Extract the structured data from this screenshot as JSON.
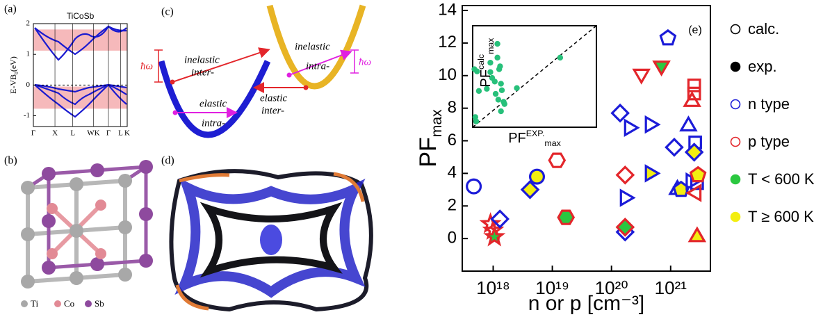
{
  "panels": {
    "a": "(a)",
    "b": "(b)",
    "c": "(c)",
    "d": "(d)"
  },
  "crystal_legend": [
    "Ti",
    "Co",
    "Sb"
  ],
  "scattering": {
    "inelastic_inter": [
      "inelastic",
      "inter-"
    ],
    "elastic_intra": [
      "elastic",
      "intra-"
    ],
    "elastic_inter": [
      "elastic",
      "inter-"
    ],
    "inelastic_intra": [
      "inelastic",
      "intra-"
    ],
    "phonon_left": "ħω",
    "phonon_right": "ħω"
  },
  "chart_data": [
    {
      "type": "scatter",
      "panel_label": "(e)",
      "y_label": {
        "text": "PF",
        "sub": "max"
      },
      "x_label": "n or p [cm⁻³]",
      "log_x": true,
      "xlim": [
        3e+17,
        4.7e+21
      ],
      "xticks": [
        {
          "value": 1e+18,
          "label": "10¹⁸"
        },
        {
          "value": 1e+19,
          "label": "10¹⁹"
        },
        {
          "value": 1e+20,
          "label": "10²⁰"
        },
        {
          "value": 1e+21,
          "label": "10²¹"
        }
      ],
      "ylim": [
        -2,
        14.3
      ],
      "yticks": [
        0,
        2,
        4,
        6,
        8,
        10,
        12,
        14
      ],
      "x": [
        4.7e+17,
        9e+17,
        1e+18,
        1.05e+18,
        1.3e+18,
        4.2e+18,
        5.5e+18,
        1.2e+19,
        1.7e+19,
        1.4e+20,
        2e+20,
        1.7e+20,
        1.7e+20,
        1.7e+20,
        1.7e+20,
        4.5e+20,
        4.5e+20,
        3.2e+20,
        7e+20,
        9e+20,
        1.15e+21,
        1.3e+21,
        1.5e+21,
        2e+21,
        2.2e+21,
        2.5e+21,
        2.5e+21,
        2.3e+21,
        2.6e+21,
        2.5e+21,
        2.8e+21,
        2.7e+21,
        2.9e+21,
        2.8e+21
      ],
      "values": [
        3.2,
        0.9,
        0.5,
        0.1,
        1.2,
        3.0,
        3.8,
        4.8,
        1.3,
        7.7,
        6.8,
        3.9,
        2.5,
        0.4,
        0.7,
        7.0,
        4.0,
        10.1,
        10.6,
        12.3,
        5.6,
        3.0,
        3.0,
        6.9,
        3.5,
        9.4,
        8.9,
        8.4,
        5.9,
        5.3,
        3.4,
        2.8,
        3.9,
        0.1
      ],
      "markers": [
        "circle",
        "star",
        "star",
        "star",
        "diamond",
        "diamond",
        "circle",
        "hexagon",
        "hexagon",
        "diamond",
        "triangle-right",
        "diamond",
        "triangle-right",
        "diamond",
        "diamond",
        "triangle-right",
        "triangle-right",
        "triangle-down",
        "triangle-down",
        "pentagon",
        "diamond",
        "triangle-up",
        "pentagon",
        "triangle-up",
        "triangle-right",
        "square",
        "square",
        "triangle-up",
        "square",
        "diamond",
        "square",
        "triangle-left",
        "pentagon",
        "triangle-up"
      ],
      "edge_colors": [
        "#1c1cd8",
        "#e3262b",
        "#e3262b",
        "#e3262b",
        "#1c1cd8",
        "#1c1cd8",
        "#1c1cd8",
        "#e3262b",
        "#e3262b",
        "#1c1cd8",
        "#1c1cd8",
        "#e3262b",
        "#1c1cd8",
        "#1c1cd8",
        "#e3262b",
        "#1c1cd8",
        "#1c1cd8",
        "#e3262b",
        "#e3262b",
        "#1c1cd8",
        "#1c1cd8",
        "#1c1cd8",
        "#1c1cd8",
        "#1c1cd8",
        "#1c1cd8",
        "#e3262b",
        "#e3262b",
        "#e3262b",
        "#1c1cd8",
        "#1c1cd8",
        "#1c1cd8",
        "#e3262b",
        "#e3262b",
        "#e3262b"
      ],
      "fill_colors": [
        "none",
        "none",
        "none",
        "#2bc840",
        "none",
        "#f3ee10",
        "#f3ee10",
        "none",
        "#2bc840",
        "none",
        "none",
        "none",
        "none",
        "none",
        "#2bc840",
        "none",
        "#f3ee10",
        "none",
        "#2bc840",
        "none",
        "none",
        "none",
        "#f3ee10",
        "none",
        "none",
        "none",
        "none",
        "none",
        "none",
        "#f3ee10",
        "none",
        "none",
        "#f3ee10",
        "#f3ee10"
      ],
      "legend": [
        {
          "label": "calc.",
          "edge": "#000000",
          "fill": "none"
        },
        {
          "label": "exp.",
          "edge": "#000000",
          "fill": "#000000"
        },
        {
          "label": "n type",
          "edge": "#1c1cd8",
          "fill": "none"
        },
        {
          "label": "p type",
          "edge": "#e3262b",
          "fill": "none"
        },
        {
          "label": "T < 600 K",
          "edge": "#2bc840",
          "fill": "#2bc840"
        },
        {
          "label": "T ≥ 600 K",
          "edge": "#f3ee10",
          "fill": "#f3ee10"
        }
      ]
    },
    {
      "type": "scatter",
      "role": "inset",
      "x_label": {
        "text": "PF",
        "sup": "EXP.",
        "sub": "max"
      },
      "y_label": {
        "text": "PF",
        "sup": "calc",
        "sub": "max"
      },
      "xlim": [
        0,
        14
      ],
      "ylim": [
        0,
        14
      ],
      "color": "#27c07a",
      "x": [
        0.2,
        0.5,
        0.3,
        0.4,
        0.7,
        1.6,
        2.0,
        2.0,
        2.2,
        2.5,
        2.8,
        2.8,
        3.0,
        3.1,
        2.6,
        2.9,
        3.2,
        3.3,
        3.5,
        3.6,
        3.2,
        5.0,
        9.9
      ],
      "values": [
        8.0,
        7.7,
        1.4,
        0.8,
        5.0,
        5.3,
        8.9,
        7.6,
        6.8,
        6.3,
        11.5,
        9.6,
        8.0,
        8.4,
        4.6,
        3.8,
        6.0,
        5.1,
        3.5,
        3.2,
        2.2,
        5.4,
        9.6
      ]
    },
    {
      "type": "band",
      "title": "TiCoSb",
      "y_label": {
        "text": "E-VB",
        "sub": "0",
        "unit": "(eV)"
      },
      "categories": [
        "Γ",
        "X",
        "L",
        "WK",
        "Γ",
        "L",
        "K"
      ],
      "ylim": [
        -1.35,
        2
      ],
      "yticks": [
        -1,
        0,
        1,
        2
      ],
      "shaded": [
        [
          1.12,
          1.81
        ],
        [
          -0.77,
          -0.05
        ]
      ],
      "shade_color": "#f6b9bb"
    }
  ]
}
